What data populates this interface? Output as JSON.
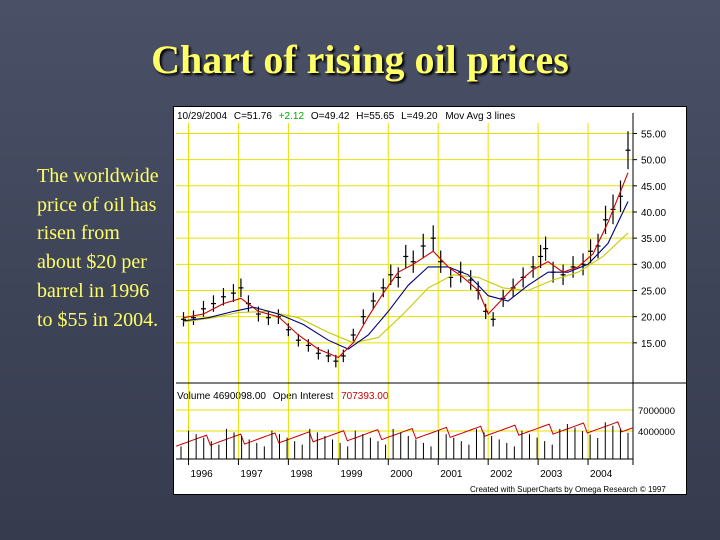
{
  "slide": {
    "title": "Chart of rising oil prices",
    "body": "The worldwide price of oil has risen from about $20 per barrel in 1996 to $55 in 2004."
  },
  "header": {
    "date": "10/29/2004",
    "close": "C=51.76",
    "change": "+2.12",
    "open": "O=49.42",
    "high": "H=55.65",
    "low": "L=49.20",
    "mov_avg": "Mov Avg 3 lines"
  },
  "volume_header": {
    "volume": "Volume  4690098.00",
    "open_interest_label": "Open Interest",
    "open_interest_value": "707393.00"
  },
  "credit": "Created with SuperCharts by Omega Research © 1997",
  "colors": {
    "title": "#ffff66",
    "grid": "#e6e100",
    "price": "#000000",
    "ma_fast": "#cc0000",
    "ma_mid": "#000080",
    "ma_slow": "#c8c800",
    "change": "#00aa00",
    "open_interest": "#cc0000"
  },
  "chart_data": {
    "type": "line",
    "xlabel": "",
    "ylabel": "",
    "years": [
      "1996",
      "1997",
      "1998",
      "1999",
      "2000",
      "2001",
      "2002",
      "2003",
      "2004"
    ],
    "price_ticks": [
      "55.00",
      "50.00",
      "45.00",
      "40.00",
      "35.00",
      "30.00",
      "25.00",
      "20.00",
      "15.00"
    ],
    "ylim": [
      10,
      57
    ],
    "volume_ticks": [
      "7000000",
      "4000000"
    ],
    "volume_ylim": [
      0,
      8000000
    ],
    "price": {
      "x": [
        1995.9,
        1996.1,
        1996.3,
        1996.5,
        1996.7,
        1996.9,
        1997.05,
        1997.2,
        1997.4,
        1997.6,
        1997.8,
        1998.0,
        1998.2,
        1998.4,
        1998.6,
        1998.8,
        1998.95,
        1999.1,
        1999.3,
        1999.5,
        1999.7,
        1999.9,
        2000.05,
        2000.2,
        2000.35,
        2000.5,
        2000.7,
        2000.9,
        2001.05,
        2001.25,
        2001.45,
        2001.65,
        2001.8,
        2001.95,
        2002.1,
        2002.3,
        2002.5,
        2002.7,
        2002.9,
        2003.05,
        2003.15,
        2003.3,
        2003.5,
        2003.7,
        2003.9,
        2004.05,
        2004.2,
        2004.35,
        2004.5,
        2004.65,
        2004.8
      ],
      "y": [
        19.5,
        19.8,
        21.5,
        22.5,
        23.8,
        24.5,
        25.5,
        22.5,
        20.5,
        19.8,
        20.0,
        17.5,
        15.5,
        14.5,
        13.0,
        12.5,
        11.5,
        12.5,
        16.5,
        20.0,
        23.0,
        25.5,
        28.0,
        27.5,
        31.5,
        30.5,
        33.5,
        35.0,
        30.5,
        27.5,
        28.5,
        27.0,
        25.0,
        21.0,
        19.5,
        23.5,
        25.5,
        27.5,
        29.5,
        31.5,
        33.0,
        28.5,
        28.0,
        29.5,
        30.0,
        32.5,
        33.5,
        38.5,
        40.5,
        43.0,
        51.8
      ]
    },
    "ma_fast": {
      "x": [
        1995.9,
        1996.3,
        1996.7,
        1997.05,
        1997.4,
        1997.8,
        1998.2,
        1998.6,
        1999.0,
        1999.3,
        1999.6,
        1999.9,
        2000.2,
        2000.5,
        2000.9,
        2001.2,
        2001.5,
        2001.8,
        2002.0,
        2002.3,
        2002.6,
        2002.9,
        2003.2,
        2003.5,
        2003.8,
        2004.1,
        2004.4,
        2004.8
      ],
      "y": [
        19.8,
        20.5,
        22.5,
        23.5,
        21.0,
        20.0,
        16.5,
        13.8,
        12.2,
        15.0,
        20.0,
        24.5,
        28.5,
        30.0,
        32.5,
        29.5,
        27.5,
        25.0,
        20.5,
        23.5,
        26.5,
        29.0,
        30.5,
        28.5,
        29.5,
        32.0,
        38.0,
        47.5
      ]
    },
    "ma_mid": {
      "x": [
        1995.9,
        1996.4,
        1996.9,
        1997.3,
        1997.8,
        1998.3,
        1998.8,
        1999.2,
        1999.6,
        2000.0,
        2000.4,
        2000.8,
        2001.2,
        2001.6,
        2002.0,
        2002.4,
        2002.8,
        2003.2,
        2003.6,
        2004.0,
        2004.4,
        2004.8
      ],
      "y": [
        19.2,
        19.8,
        21.0,
        21.8,
        20.5,
        18.5,
        15.5,
        13.8,
        16.5,
        21.0,
        26.0,
        29.5,
        29.5,
        28.0,
        24.0,
        23.0,
        26.0,
        28.5,
        28.5,
        30.0,
        34.0,
        42.0
      ]
    },
    "ma_slow": {
      "x": [
        1995.9,
        1996.5,
        1997.0,
        1997.6,
        1998.2,
        1998.8,
        1999.3,
        1999.8,
        2000.3,
        2000.8,
        2001.3,
        2001.8,
        2002.3,
        2002.8,
        2003.3,
        2003.8,
        2004.3,
        2004.8
      ],
      "y": [
        19.0,
        19.8,
        20.8,
        21.0,
        19.8,
        17.0,
        15.0,
        16.0,
        20.5,
        25.5,
        28.0,
        27.5,
        25.5,
        25.0,
        27.0,
        28.5,
        31.5,
        36.0
      ]
    }
  }
}
